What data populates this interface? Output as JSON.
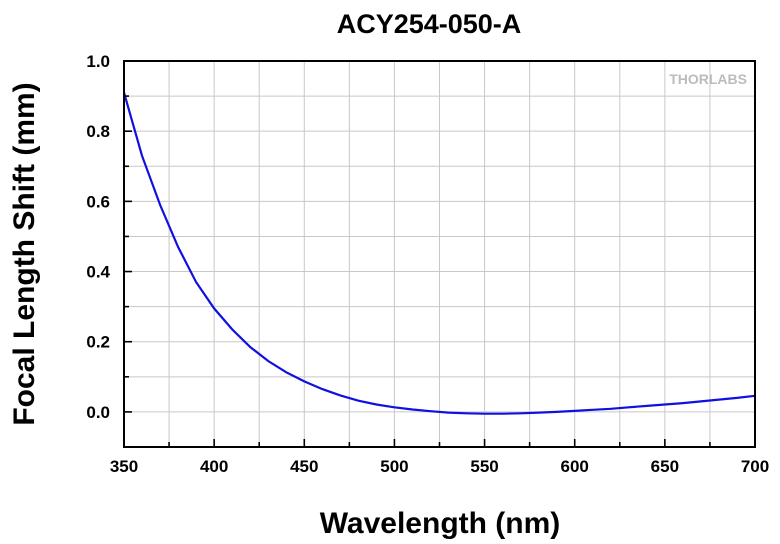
{
  "chart_data": {
    "type": "line",
    "title": "ACY254-050-A",
    "xlabel": "Wavelength (nm)",
    "ylabel": "Focal Length Shift (mm)",
    "xlim": [
      350,
      700
    ],
    "ylim": [
      -0.1,
      1.0
    ],
    "xticks": [
      350,
      400,
      450,
      500,
      550,
      600,
      650,
      700
    ],
    "yticks": [
      0.0,
      0.2,
      0.4,
      0.6,
      0.8,
      1.0
    ],
    "xtick_labels": [
      "350",
      "400",
      "450",
      "500",
      "550",
      "600",
      "650",
      "700"
    ],
    "ytick_labels": [
      "0.0",
      "0.2",
      "0.4",
      "0.6",
      "0.8",
      "1.0"
    ],
    "grid": true,
    "series": [
      {
        "color": "#1010e0",
        "x": [
          350,
          360,
          370,
          380,
          390,
          400,
          410,
          420,
          430,
          440,
          450,
          460,
          470,
          480,
          490,
          500,
          510,
          520,
          530,
          540,
          550,
          560,
          570,
          580,
          590,
          600,
          610,
          620,
          630,
          640,
          650,
          660,
          670,
          680,
          690,
          700
        ],
        "y": [
          0.91,
          0.73,
          0.59,
          0.47,
          0.37,
          0.295,
          0.235,
          0.185,
          0.145,
          0.113,
          0.087,
          0.065,
          0.047,
          0.032,
          0.021,
          0.013,
          0.007,
          0.002,
          -0.002,
          -0.004,
          -0.005,
          -0.005,
          -0.004,
          -0.002,
          0.0,
          0.003,
          0.006,
          0.009,
          0.013,
          0.017,
          0.021,
          0.025,
          0.03,
          0.035,
          0.04,
          0.046
        ]
      }
    ]
  },
  "brand": {
    "logo_text": "THORLABS"
  }
}
